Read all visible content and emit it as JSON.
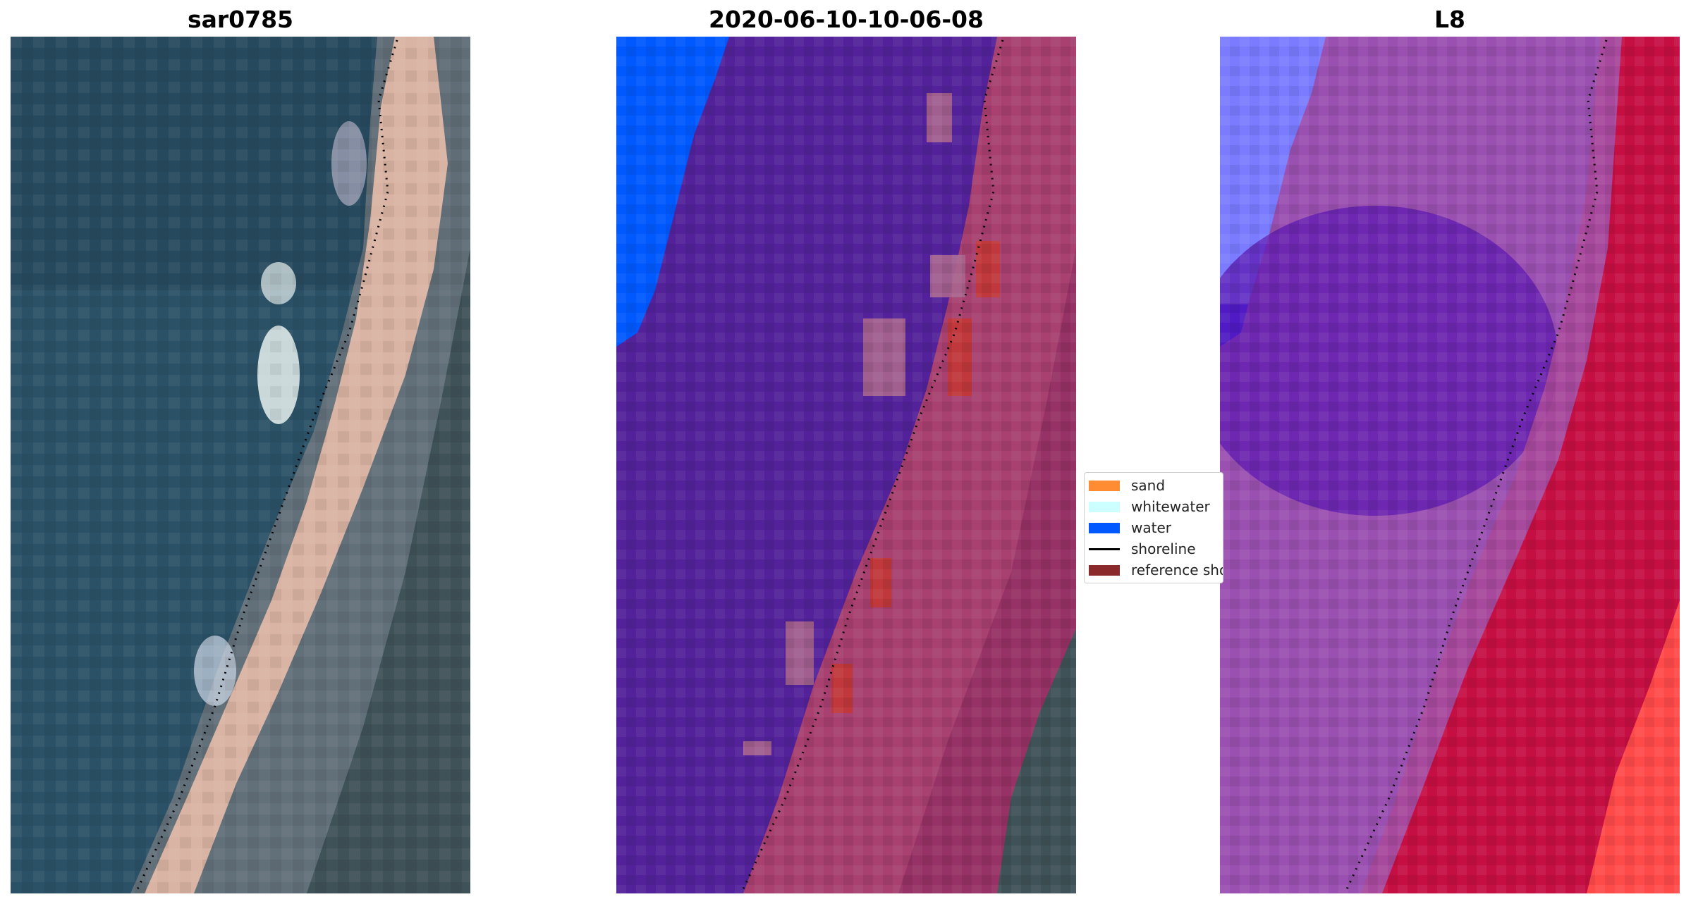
{
  "panels": [
    {
      "title": "sar0785"
    },
    {
      "title": "2020-06-10-10-06-08"
    },
    {
      "title": "L8"
    }
  ],
  "legend": {
    "items": [
      {
        "label": "sand",
        "color": "#ff8c33"
      },
      {
        "label": "whitewater",
        "color": "#ccffff"
      },
      {
        "label": "water",
        "color": "#0059ff"
      },
      {
        "label": "shoreline",
        "color": "#000000"
      },
      {
        "label": "reference shoreline",
        "color": "#8b2a2a"
      }
    ]
  },
  "colors": {
    "rgb_water": "#2b5166",
    "rgb_beach": "#d9b3a3",
    "rgb_land": "#3f5257",
    "class_water": "#53229a",
    "class_deep_water": "#0059ff",
    "class_land": "#a84070",
    "class_reference": "#c0383b",
    "false_color_water": "#6a2aa8",
    "false_color_land": "#c9093a"
  }
}
